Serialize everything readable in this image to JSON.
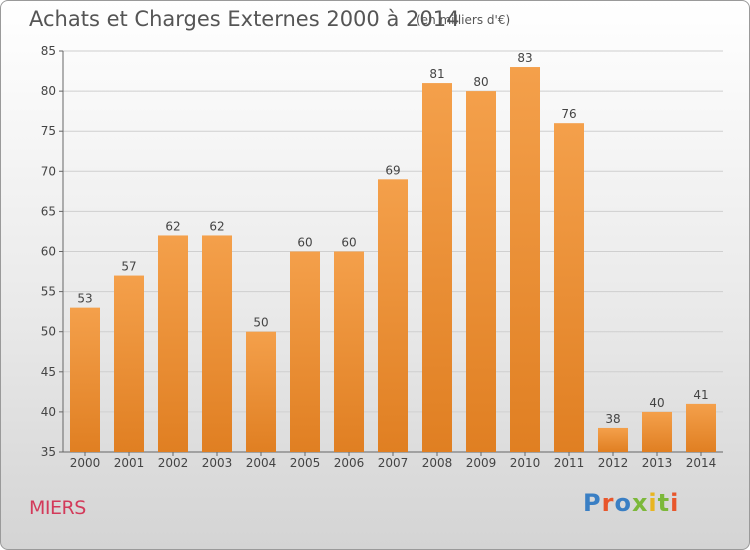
{
  "chart_data": {
    "type": "bar",
    "title": "Achats et Charges Externes 2000 à 2014",
    "subtitle": "(en milliers d'€)",
    "categories": [
      "2000",
      "2001",
      "2002",
      "2003",
      "2004",
      "2005",
      "2006",
      "2007",
      "2008",
      "2009",
      "2010",
      "2011",
      "2012",
      "2013",
      "2014"
    ],
    "values": [
      53,
      57,
      62,
      62,
      50,
      60,
      60,
      69,
      81,
      80,
      83,
      76,
      38,
      40,
      41
    ],
    "ylim": [
      35,
      85
    ],
    "yticks": [
      35,
      40,
      45,
      50,
      55,
      60,
      65,
      70,
      75,
      80,
      85
    ],
    "grid": true,
    "bar_color": "#f4a04b",
    "bar_color_dark": "#e07f22"
  },
  "footer": {
    "place": "MIERS",
    "logo": "Proxiti",
    "logo_colors": [
      "#3a7fc4",
      "#e8562b",
      "#3a7fc4",
      "#7cb83a",
      "#e8b520",
      "#7cb83a",
      "#e8562b"
    ]
  }
}
